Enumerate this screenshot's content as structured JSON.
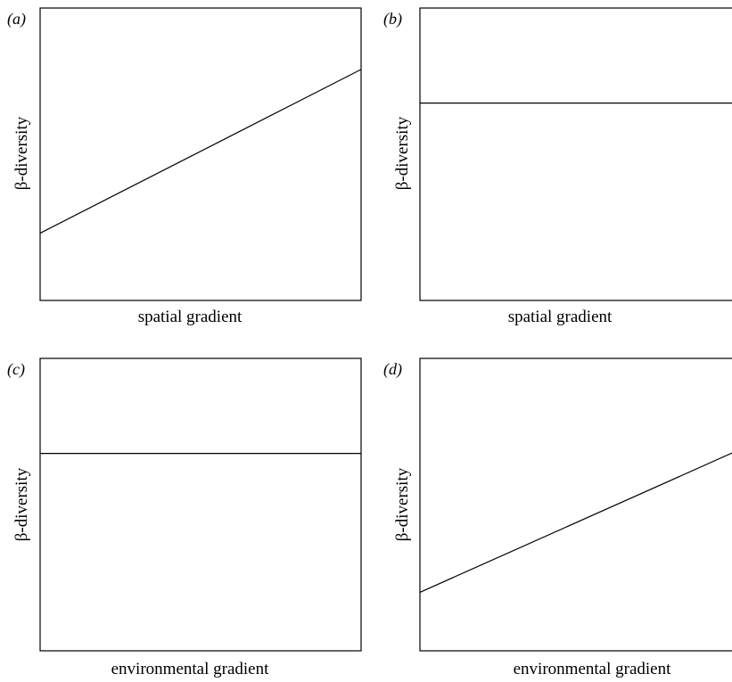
{
  "chart_data": [
    {
      "type": "line",
      "panel_label": "(a)",
      "xlabel": "spatial gradient",
      "ylabel": "β-diversity",
      "xlim": [
        0,
        1
      ],
      "ylim": [
        0,
        1
      ],
      "series": [
        {
          "x": [
            0,
            1
          ],
          "y": [
            0.23,
            0.79
          ]
        }
      ]
    },
    {
      "type": "line",
      "panel_label": "(b)",
      "xlabel": "spatial gradient",
      "ylabel": "β-diversity",
      "xlim": [
        0,
        1
      ],
      "ylim": [
        0,
        1
      ],
      "series": [
        {
          "x": [
            0,
            1
          ],
          "y": [
            0.675,
            0.675
          ]
        }
      ]
    },
    {
      "type": "line",
      "panel_label": "(c)",
      "xlabel": "environmental gradient",
      "ylabel": "β-diversity",
      "xlim": [
        0,
        1
      ],
      "ylim": [
        0,
        1
      ],
      "series": [
        {
          "x": [
            0,
            1
          ],
          "y": [
            0.675,
            0.675
          ]
        }
      ]
    },
    {
      "type": "line",
      "panel_label": "(d)",
      "xlabel": "environmental gradient",
      "ylabel": "β-diversity",
      "xlim": [
        0,
        1
      ],
      "ylim": [
        0,
        1
      ],
      "series": [
        {
          "x": [
            0,
            1
          ],
          "y": [
            0.2,
            0.69
          ]
        }
      ]
    }
  ]
}
